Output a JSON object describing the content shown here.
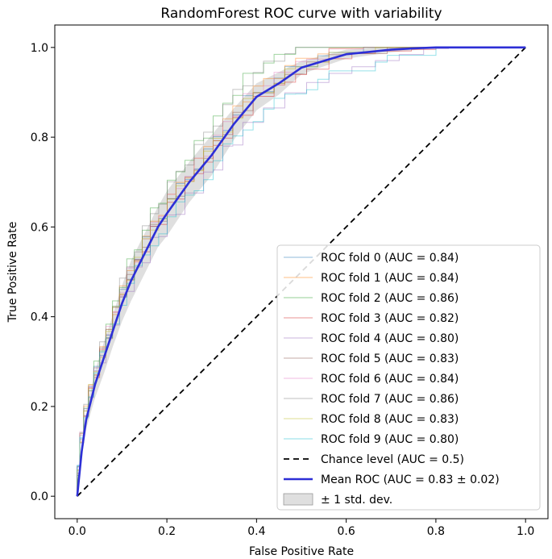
{
  "chart_data": {
    "type": "line",
    "title": "RandomForest ROC curve with variability",
    "xlabel": "False Positive Rate",
    "ylabel": "True Positive Rate",
    "xlim": [
      -0.05,
      1.05
    ],
    "ylim": [
      -0.05,
      1.05
    ],
    "xticks": [
      "0.0",
      "0.2",
      "0.4",
      "0.6",
      "0.8",
      "1.0"
    ],
    "yticks": [
      "0.0",
      "0.2",
      "0.4",
      "0.6",
      "0.8",
      "1.0"
    ],
    "grid": false,
    "legend_position": "lower-right",
    "mean_fpr": [
      0,
      0.01,
      0.02,
      0.04,
      0.06,
      0.08,
      0.1,
      0.12,
      0.15,
      0.18,
      0.2,
      0.25,
      0.3,
      0.35,
      0.4,
      0.45,
      0.5,
      0.55,
      0.6,
      0.65,
      0.7,
      0.75,
      0.8,
      0.9,
      1.0
    ],
    "mean_tpr": [
      0,
      0.1,
      0.17,
      0.25,
      0.31,
      0.37,
      0.43,
      0.48,
      0.54,
      0.6,
      0.63,
      0.7,
      0.76,
      0.83,
      0.89,
      0.92,
      0.955,
      0.97,
      0.985,
      0.99,
      0.995,
      0.998,
      1.0,
      1.0,
      1.0
    ],
    "std_tpr": [
      0,
      0.015,
      0.02,
      0.03,
      0.035,
      0.035,
      0.04,
      0.045,
      0.045,
      0.045,
      0.05,
      0.045,
      0.045,
      0.035,
      0.03,
      0.025,
      0.015,
      0.012,
      0.01,
      0.008,
      0.006,
      0.004,
      0.002,
      0,
      0
    ],
    "series": [
      {
        "name": "ROC fold 0 (AUC = 0.84)",
        "color": "#1f77b4",
        "auc": 0.84,
        "offset": 0.0
      },
      {
        "name": "ROC fold 1 (AUC = 0.84)",
        "color": "#ff7f0e",
        "auc": 0.84,
        "offset": 0.01
      },
      {
        "name": "ROC fold 2 (AUC = 0.86)",
        "color": "#2ca02c",
        "auc": 0.86,
        "offset": 0.05
      },
      {
        "name": "ROC fold 3 (AUC = 0.82)",
        "color": "#d62728",
        "auc": 0.82,
        "offset": -0.02
      },
      {
        "name": "ROC fold 4 (AUC = 0.80)",
        "color": "#9467bd",
        "auc": 0.8,
        "offset": -0.06
      },
      {
        "name": "ROC fold 5 (AUC = 0.83)",
        "color": "#8c564b",
        "auc": 0.83,
        "offset": -0.01
      },
      {
        "name": "ROC fold 6 (AUC = 0.84)",
        "color": "#e377c2",
        "auc": 0.84,
        "offset": 0.005
      },
      {
        "name": "ROC fold 7 (AUC = 0.86)",
        "color": "#7f7f7f",
        "auc": 0.86,
        "offset": 0.045
      },
      {
        "name": "ROC fold 8 (AUC = 0.83)",
        "color": "#bcbd22",
        "auc": 0.83,
        "offset": -0.005
      },
      {
        "name": "ROC fold 9 (AUC = 0.80)",
        "color": "#17becf",
        "auc": 0.8,
        "offset": -0.055
      }
    ],
    "chance": {
      "name": "Chance level (AUC = 0.5)",
      "x": [
        0,
        1
      ],
      "y": [
        0,
        1
      ]
    },
    "mean": {
      "name": "Mean ROC (AUC = 0.83 ± 0.02)",
      "color": "#2d2fd6"
    },
    "band": {
      "name": "± 1 std. dev.",
      "color": "#b0b0b0"
    }
  }
}
